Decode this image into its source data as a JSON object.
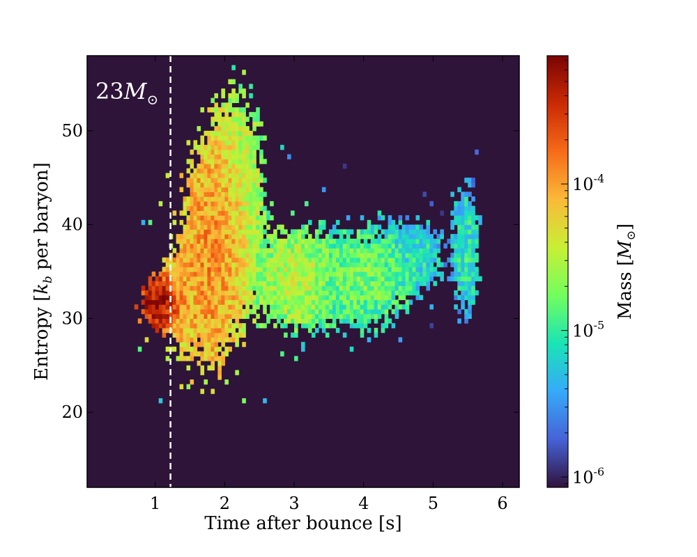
{
  "chart_data": {
    "type": "heatmap",
    "title": "",
    "xlabel": "Time after bounce [s]",
    "ylabel_parts": [
      "Entropy [",
      "k",
      "b",
      " per baryon]"
    ],
    "xlim": [
      0.02,
      6.24
    ],
    "ylim": [
      12,
      58
    ],
    "xticks": [
      "1",
      "2",
      "3",
      "4",
      "5",
      "6"
    ],
    "xtick_values": [
      1,
      2,
      3,
      4,
      5,
      6
    ],
    "yticks": [
      "20",
      "30",
      "40",
      "50"
    ],
    "ytick_values": [
      20,
      30,
      40,
      50
    ],
    "annotation": {
      "main": "23",
      "symbol": "M",
      "subscript": "⊙"
    },
    "vline_x": 1.22,
    "vline_style": "dashed white",
    "background_color": "#2e1439",
    "colorbar": {
      "label_parts": [
        "Mass [",
        "M",
        "⊙",
        "]"
      ],
      "scale": "log",
      "range": [
        8.5e-07,
        0.00075
      ],
      "ticks": [
        {
          "base": "10",
          "exp": "-6",
          "value": 1e-06
        },
        {
          "base": "10",
          "exp": "-5",
          "value": 1e-05
        },
        {
          "base": "10",
          "exp": "-4",
          "value": 0.0001
        }
      ],
      "colormap": [
        "#30123b",
        "#4662d7",
        "#36aaf9",
        "#1ae4b6",
        "#72fe5e",
        "#c8ef34",
        "#faba39",
        "#f66b19",
        "#ca2a04",
        "#7a0403"
      ]
    },
    "bin_width_s": 0.05,
    "bin_height_kb": 0.5,
    "density_clusters": [
      {
        "t": 1.0,
        "s": 31.5,
        "sigma_t": 0.15,
        "sigma_s": 1.6,
        "peak_log_mass": -3.3
      },
      {
        "t": 1.3,
        "s": 32.0,
        "sigma_t": 0.15,
        "sigma_s": 3.0,
        "peak_log_mass": -3.9
      },
      {
        "t": 1.75,
        "s": 36.0,
        "sigma_t": 0.28,
        "sigma_s": 8.0,
        "peak_log_mass": -3.95
      },
      {
        "t": 2.15,
        "s": 43.0,
        "sigma_t": 0.25,
        "sigma_s": 7.0,
        "peak_log_mass": -4.4
      },
      {
        "t": 2.95,
        "s": 34.0,
        "sigma_t": 0.35,
        "sigma_s": 3.5,
        "peak_log_mass": -4.5
      },
      {
        "t": 3.9,
        "s": 34.0,
        "sigma_t": 0.45,
        "sigma_s": 3.5,
        "peak_log_mass": -4.75
      },
      {
        "t": 4.7,
        "s": 36.5,
        "sigma_t": 0.25,
        "sigma_s": 2.5,
        "peak_log_mass": -5.05
      },
      {
        "t": 5.45,
        "s": 37.0,
        "sigma_t": 0.13,
        "sigma_s": 4.5,
        "peak_log_mass": -5.05
      }
    ]
  }
}
